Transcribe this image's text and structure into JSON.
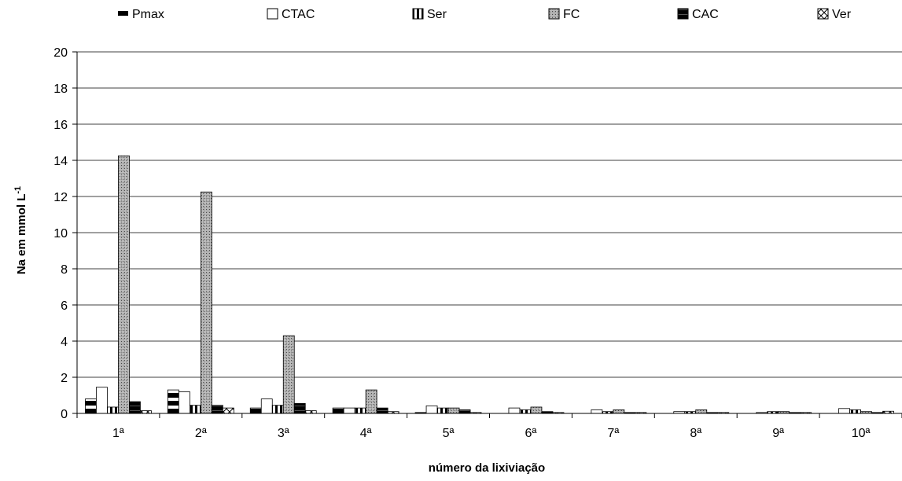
{
  "chart_data": {
    "type": "bar",
    "categories": [
      "1ª",
      "2ª",
      "3ª",
      "4ª",
      "5ª",
      "6ª",
      "7ª",
      "8ª",
      "9ª",
      "10ª"
    ],
    "series": [
      {
        "name": "Pmax",
        "pattern": "pat-pmax",
        "values": [
          0.8,
          1.3,
          0.3,
          0.3,
          0.05,
          0.0,
          0.0,
          0.0,
          0.0,
          0.0
        ]
      },
      {
        "name": "CTAC",
        "pattern": "pat-ctac",
        "values": [
          1.45,
          1.2,
          0.8,
          0.3,
          0.42,
          0.3,
          0.2,
          0.1,
          0.05,
          0.27
        ]
      },
      {
        "name": "Ser",
        "pattern": "pat-ser",
        "values": [
          0.35,
          0.45,
          0.45,
          0.3,
          0.3,
          0.2,
          0.1,
          0.1,
          0.1,
          0.2
        ]
      },
      {
        "name": "FC",
        "pattern": "pat-fc",
        "values": [
          14.25,
          12.25,
          4.3,
          1.3,
          0.3,
          0.35,
          0.2,
          0.2,
          0.1,
          0.1
        ]
      },
      {
        "name": "CAC",
        "pattern": "pat-cac",
        "values": [
          0.65,
          0.45,
          0.55,
          0.3,
          0.2,
          0.1,
          0.05,
          0.05,
          0.05,
          0.05
        ]
      },
      {
        "name": "Ver",
        "pattern": "pat-ver",
        "values": [
          0.15,
          0.3,
          0.15,
          0.1,
          0.05,
          0.05,
          0.05,
          0.05,
          0.05,
          0.12
        ]
      }
    ],
    "xlabel": "número da lixiviação",
    "ylabel": "Na em  mmol L",
    "ylabel_sup": "-1",
    "ylim": [
      0,
      20
    ],
    "yticks": [
      0,
      2,
      4,
      6,
      8,
      10,
      12,
      14,
      16,
      18,
      20
    ],
    "grid": true,
    "legend_position": "top"
  }
}
